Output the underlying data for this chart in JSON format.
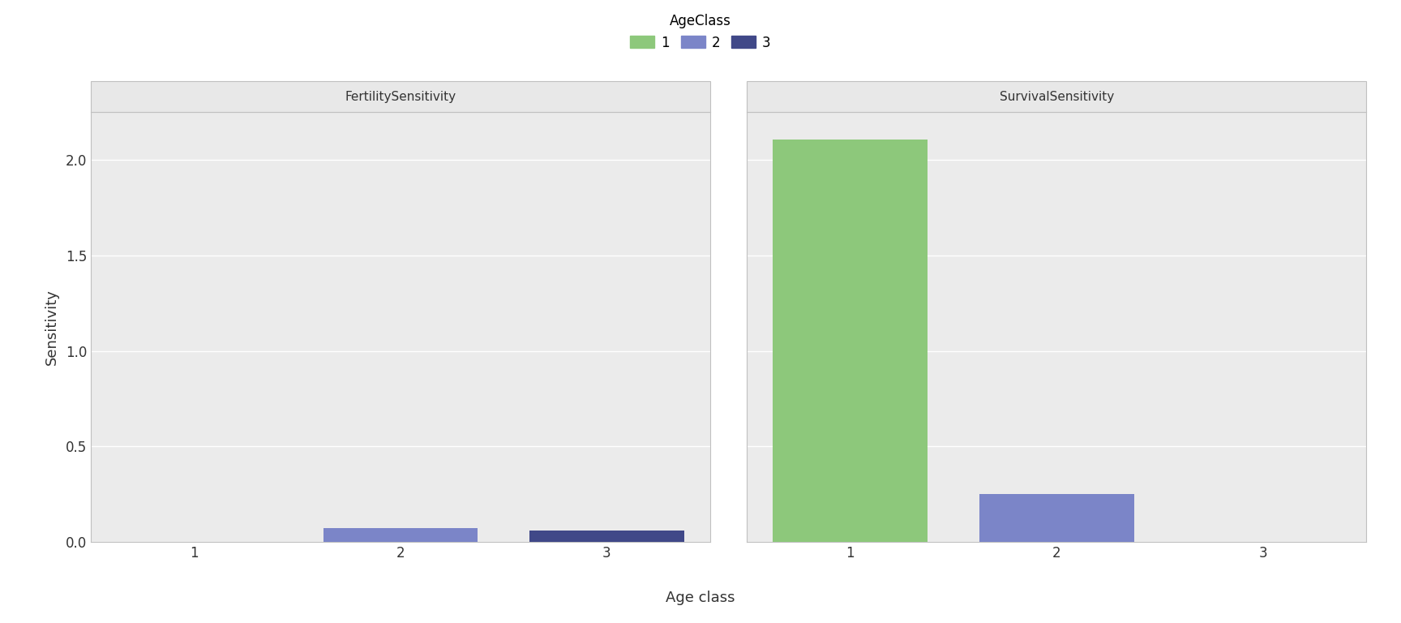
{
  "panels": [
    "FertilitySensitivity",
    "SurvivalSensitivity"
  ],
  "age_classes": [
    1,
    2,
    3
  ],
  "colors": {
    "1": "#8dc87b",
    "2": "#7b85c8",
    "3": "#404888"
  },
  "fertility_values": {
    "1": 0.0,
    "2": 0.073,
    "3": 0.06
  },
  "survival_values": {
    "1": 2.105,
    "2": 0.252,
    "3": 0.0
  },
  "ylim": [
    0,
    2.25
  ],
  "yticks": [
    0.0,
    0.5,
    1.0,
    1.5,
    2.0
  ],
  "xlim": [
    0.5,
    3.5
  ],
  "xticks": [
    1,
    2,
    3
  ],
  "xlabel": "Age class",
  "ylabel": "Sensitivity",
  "legend_title": "AgeClass",
  "bar_width": 0.75,
  "background_color": "#ffffff",
  "panel_header_color": "#e8e8e8",
  "panel_border_color": "#c0c0c0",
  "grid_color": "#ffffff",
  "axis_bg_color": "#ebebeb"
}
